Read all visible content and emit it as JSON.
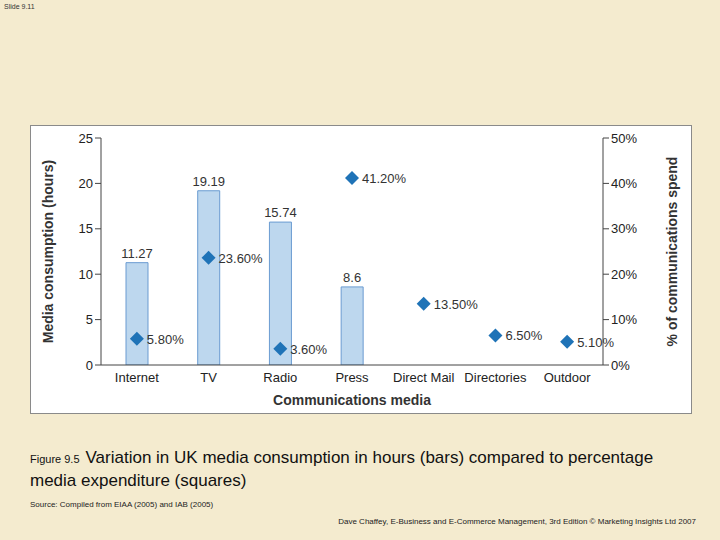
{
  "slide": {
    "number": "Slide 9.11",
    "figure_number": "Figure 9.5",
    "caption": "Variation in UK media consumption in hours (bars) compared to percentage media expenditure (squares)",
    "source": "Source: Compiled from EIAA (2005) and IAB (2005)",
    "footer": "Dave Chaffey, E-Business and E-Commerce Management, 3rd Edition © Marketing Insights Ltd 2007"
  },
  "chart_data": {
    "type": "bar",
    "xlabel": "Communications media",
    "categories": [
      "Internet",
      "TV",
      "Radio",
      "Press",
      "Direct Mail",
      "Directories",
      "Outdoor"
    ],
    "series": [
      {
        "name": "Media consumption (hours)",
        "type": "bar",
        "color": "#bdd7ee",
        "data_labels": true,
        "values": [
          11.27,
          19.19,
          15.74,
          8.6,
          0,
          0,
          0
        ]
      },
      {
        "name": "% of communications spend",
        "type": "scatter",
        "axis": "y2",
        "marker": "diamond",
        "color": "#1f73b7",
        "data_labels": true,
        "values": [
          5.8,
          23.6,
          3.6,
          41.2,
          13.5,
          6.5,
          5.1
        ],
        "value_labels": [
          "5.80%",
          "23.60%",
          "3.60%",
          "41.20%",
          "13.50%",
          "6.50%",
          "5.10%"
        ]
      }
    ],
    "ylim": [
      0,
      25
    ],
    "yticks": [
      0,
      5,
      10,
      15,
      20,
      25
    ],
    "y2lim": [
      0,
      50
    ],
    "y2ticks": [
      {
        "value": 0,
        "label": "0%"
      },
      {
        "value": 10,
        "label": "10%"
      },
      {
        "value": 20,
        "label": "20%"
      },
      {
        "value": 30,
        "label": "30%"
      },
      {
        "value": 40,
        "label": "40%"
      },
      {
        "value": 50,
        "label": "50%"
      }
    ],
    "grid": false,
    "tick_labels": true
  }
}
